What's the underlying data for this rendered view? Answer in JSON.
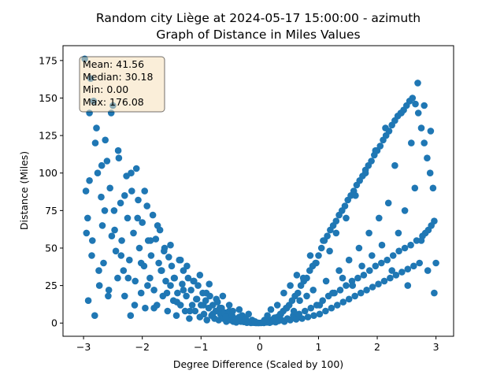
{
  "chart_data": {
    "type": "scatter",
    "title": "Random city Liège at 2024-05-17 15:00:00  - azimuth",
    "subtitle": "Graph of Distance in Miles Values",
    "xlabel": "Degree Difference (Scaled by 100)",
    "ylabel": "Distance (Miles)",
    "xlim": [
      -3.35,
      3.3
    ],
    "ylim": [
      -8.8,
      184.9
    ],
    "xticks": [
      -3,
      -2,
      -1,
      0,
      1,
      2,
      3
    ],
    "yticks": [
      0,
      25,
      50,
      75,
      100,
      125,
      150,
      175
    ],
    "grid": false,
    "point_color": "#1f77b4",
    "stats_box": {
      "lines": [
        "Mean: 41.56",
        "Median: 30.18",
        "Min: 0.00",
        "Max: 176.08"
      ],
      "placement": "top-left"
    },
    "series": [
      {
        "x": [
          -2.98,
          -2.95,
          -2.93,
          -2.92,
          -2.9,
          -2.88,
          -2.86,
          -2.83,
          -2.81,
          -2.78,
          -2.76,
          -2.73,
          -2.7,
          -2.68,
          -2.66,
          -2.63,
          -2.6,
          -2.57,
          -2.55,
          -2.52,
          -2.5,
          -2.48,
          -2.45,
          -2.42,
          -2.4,
          -2.37,
          -2.35,
          -2.32,
          -2.3,
          -2.27,
          -2.25,
          -2.22,
          -2.2,
          -2.18,
          -2.15,
          -2.12,
          -2.1,
          -2.07,
          -2.05,
          -2.02,
          -2.0,
          -1.97,
          -1.95,
          -1.92,
          -1.9,
          -1.87,
          -1.85,
          -1.82,
          -1.8,
          -1.77,
          -1.75,
          -1.72,
          -1.7,
          -1.67,
          -1.65,
          -1.62,
          -1.6,
          -1.57,
          -1.55,
          -1.52,
          -1.5,
          -1.47,
          -1.45,
          -1.42,
          -1.4,
          -1.37,
          -1.35,
          -1.32,
          -1.3,
          -1.27,
          -1.25,
          -1.22,
          -1.2,
          -1.17,
          -1.15,
          -1.12,
          -1.1,
          -1.07,
          -1.05,
          -1.02,
          -1.0,
          -0.97,
          -0.95,
          -0.92,
          -0.9,
          -0.87,
          -0.85,
          -0.82,
          -0.8,
          -0.77,
          -0.75,
          -0.72,
          -0.7,
          -0.67,
          -0.65,
          -0.62,
          -0.6,
          -0.57,
          -0.55,
          -0.52,
          -0.5,
          -0.47,
          -0.45,
          -0.42,
          -0.4,
          -0.37,
          -0.35,
          -0.32,
          -0.3,
          -0.27,
          -0.25,
          -0.22,
          -0.2,
          -0.17,
          -0.15,
          -0.12,
          -0.1,
          -0.07,
          -0.05,
          -0.02
        ],
        "y": [
          176.08,
          60,
          70,
          15,
          95,
          163,
          45,
          148,
          5,
          130,
          100,
          25,
          84,
          65,
          40,
          122,
          108,
          22,
          90,
          58,
          145,
          75,
          48,
          30,
          110,
          80,
          55,
          35,
          18,
          98,
          70,
          42,
          5,
          88,
          60,
          28,
          103,
          82,
          50,
          20,
          67,
          38,
          10,
          78,
          55,
          30,
          45,
          72,
          22,
          56,
          12,
          40,
          62,
          35,
          18,
          50,
          28,
          8,
          44,
          25,
          38,
          15,
          30,
          5,
          20,
          42,
          12,
          26,
          35,
          8,
          18,
          30,
          3,
          22,
          12,
          28,
          8,
          16,
          25,
          4,
          12,
          20,
          6,
          15,
          2,
          10,
          18,
          5,
          12,
          3,
          8,
          14,
          2,
          6,
          10,
          3,
          7,
          1,
          4,
          8,
          2,
          5,
          1,
          3,
          0.5,
          2,
          4,
          1,
          2.5,
          0.8,
          1.5,
          0.3,
          1,
          0.6,
          0.2,
          0.4,
          0.3,
          0.1,
          0.2,
          0.05
        ]
      },
      {
        "x": [
          -2.96,
          -2.9,
          -2.85,
          -2.8,
          -2.74,
          -2.69,
          -2.64,
          -2.58,
          -2.53,
          -2.47,
          -2.41,
          -2.36,
          -2.3,
          -2.24,
          -2.19,
          -2.13,
          -2.08,
          -2.02,
          -1.96,
          -1.91,
          -1.86,
          -1.8,
          -1.74,
          -1.68,
          -1.63,
          -1.58,
          -1.52,
          -1.46,
          -1.41,
          -1.35,
          -1.3,
          -1.24,
          -1.19,
          -1.13,
          -1.08,
          -1.02,
          -0.96,
          -0.91,
          -0.86,
          -0.8,
          -0.74,
          -0.68,
          -0.63,
          -0.58,
          -0.52,
          -0.46,
          -0.41,
          -0.35,
          -0.3,
          -0.24,
          -0.19,
          -0.13,
          -0.08
        ],
        "y": [
          88,
          140,
          55,
          120,
          35,
          105,
          75,
          18,
          140,
          62,
          115,
          45,
          85,
          30,
          100,
          12,
          70,
          40,
          88,
          25,
          55,
          10,
          65,
          35,
          48,
          20,
          52,
          30,
          14,
          42,
          22,
          38,
          8,
          28,
          16,
          32,
          12,
          20,
          26,
          6,
          16,
          10,
          18,
          4,
          12,
          8,
          2,
          9,
          5,
          3,
          6,
          2,
          1
        ]
      },
      {
        "x": [
          0.02,
          0.05,
          0.07,
          0.1,
          0.12,
          0.15,
          0.17,
          0.2,
          0.22,
          0.25,
          0.27,
          0.3,
          0.32,
          0.35,
          0.37,
          0.4,
          0.42,
          0.45,
          0.47,
          0.5,
          0.52,
          0.55,
          0.57,
          0.6,
          0.62,
          0.65,
          0.67,
          0.7,
          0.72,
          0.75,
          0.77,
          0.8,
          0.82,
          0.85,
          0.87,
          0.9,
          0.92,
          0.95,
          0.97,
          1.0,
          1.02,
          1.05,
          1.07,
          1.1,
          1.12,
          1.15,
          1.17,
          1.2,
          1.22,
          1.25,
          1.27,
          1.3,
          1.32,
          1.35,
          1.37,
          1.4,
          1.42,
          1.45,
          1.47,
          1.5,
          1.52,
          1.55,
          1.57,
          1.6,
          1.62,
          1.65,
          1.67,
          1.7,
          1.72,
          1.75,
          1.77,
          1.8,
          1.82,
          1.85,
          1.87,
          1.9,
          1.92,
          1.95,
          1.97,
          2.0,
          2.02,
          2.05,
          2.07,
          2.1,
          2.12,
          2.15,
          2.17,
          2.2,
          2.22,
          2.25,
          2.27,
          2.3,
          2.32,
          2.35,
          2.37,
          2.4,
          2.42,
          2.45,
          2.47,
          2.5,
          2.52,
          2.55,
          2.57,
          2.6,
          2.62,
          2.65,
          2.67,
          2.7,
          2.72,
          2.75,
          2.77,
          2.8,
          2.82,
          2.85,
          2.87,
          2.9,
          2.92,
          2.95,
          2.97,
          3.0
        ],
        "y": [
          0.1,
          0.4,
          0.2,
          0.8,
          0.5,
          1.5,
          0.3,
          2,
          1,
          3.5,
          0.6,
          4,
          1.5,
          6,
          2,
          8,
          1,
          10,
          3,
          12,
          2,
          15,
          5,
          18,
          2.5,
          20,
          6,
          25,
          3,
          28,
          8,
          30,
          4,
          35,
          10,
          38,
          5,
          40,
          12,
          45,
          6,
          50,
          15,
          55,
          8,
          58,
          18,
          62,
          10,
          65,
          20,
          68,
          12,
          72,
          22,
          75,
          14,
          78,
          25,
          82,
          16,
          85,
          28,
          88,
          18,
          92,
          30,
          95,
          20,
          98,
          32,
          102,
          22,
          105,
          35,
          108,
          24,
          112,
          38,
          115,
          26,
          118,
          40,
          122,
          28,
          125,
          42,
          128,
          30,
          132,
          45,
          135,
          32,
          138,
          48,
          140,
          34,
          142,
          50,
          145,
          36,
          148,
          52,
          150,
          38,
          146,
          55,
          140,
          40,
          130,
          58,
          120,
          60,
          110,
          62,
          100,
          65,
          90,
          68,
          40
        ]
      },
      {
        "x": [
          0.08,
          0.13,
          0.19,
          0.24,
          0.3,
          0.36,
          0.41,
          0.46,
          0.52,
          0.58,
          0.63,
          0.68,
          0.74,
          0.8,
          0.86,
          0.91,
          0.96,
          1.02,
          1.08,
          1.13,
          1.19,
          1.24,
          1.3,
          1.35,
          1.41,
          1.47,
          1.52,
          1.58,
          1.63,
          1.69,
          1.74,
          1.8,
          1.86,
          1.91,
          1.97,
          2.03,
          2.08,
          2.14,
          2.19,
          2.25,
          2.3,
          2.36,
          2.41,
          2.47,
          2.52,
          2.58,
          2.64,
          2.69,
          2.75,
          2.8,
          2.86,
          2.91,
          2.97
        ],
        "y": [
          2,
          5,
          9,
          3,
          12,
          6,
          20,
          10,
          25,
          8,
          32,
          15,
          30,
          18,
          45,
          22,
          40,
          12,
          55,
          28,
          48,
          20,
          60,
          35,
          30,
          70,
          42,
          25,
          85,
          50,
          38,
          100,
          60,
          45,
          115,
          70,
          52,
          130,
          80,
          35,
          105,
          60,
          140,
          75,
          25,
          120,
          90,
          160,
          55,
          145,
          35,
          128,
          20
        ]
      }
    ]
  }
}
